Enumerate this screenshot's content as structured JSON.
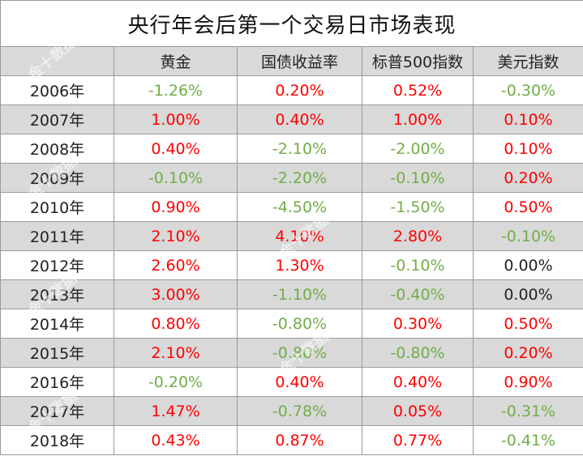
{
  "title": "央行年会后第一个交易日市场表现",
  "columns": [
    "",
    "黄金",
    "国债收益率",
    "标普500指数",
    "美元指数"
  ],
  "rows": [
    {
      "year": "2006年",
      "values": [
        "-1.26%",
        "0.20%",
        "0.52%",
        "-0.30%"
      ]
    },
    {
      "year": "2007年",
      "values": [
        "1.00%",
        "0.40%",
        "1.00%",
        "0.10%"
      ]
    },
    {
      "year": "2008年",
      "values": [
        "0.40%",
        "-2.10%",
        "-2.00%",
        "0.10%"
      ]
    },
    {
      "year": "2009年",
      "values": [
        "-0.10%",
        "-2.20%",
        "-0.10%",
        "0.20%"
      ]
    },
    {
      "year": "2010年",
      "values": [
        "0.90%",
        "-4.50%",
        "-1.50%",
        "0.50%"
      ]
    },
    {
      "year": "2011年",
      "values": [
        "2.10%",
        "4.10%",
        "2.80%",
        "-0.10%"
      ]
    },
    {
      "year": "2012年",
      "values": [
        "2.60%",
        "1.30%",
        "-0.10%",
        "0.00%"
      ]
    },
    {
      "year": "2013年",
      "values": [
        "3.00%",
        "-1.10%",
        "-0.40%",
        "0.00%"
      ]
    },
    {
      "year": "2014年",
      "values": [
        "0.80%",
        "-0.80%",
        "0.30%",
        "0.50%"
      ]
    },
    {
      "year": "2015年",
      "values": [
        "2.10%",
        "-0.80%",
        "-0.80%",
        "0.20%"
      ]
    },
    {
      "year": "2016年",
      "values": [
        "-0.20%",
        "0.40%",
        "0.40%",
        "0.90%"
      ]
    },
    {
      "year": "2017年",
      "values": [
        "1.47%",
        "-0.78%",
        "0.05%",
        "-0.31%"
      ]
    },
    {
      "year": "2018年",
      "values": [
        "0.43%",
        "0.87%",
        "0.77%",
        "-0.41%"
      ]
    }
  ],
  "colors": {
    "positive": "#ff0000",
    "negative": "#70ad47",
    "neutral": "#222222",
    "stripe": "#d9d9d9"
  },
  "watermark": "金十数据"
}
